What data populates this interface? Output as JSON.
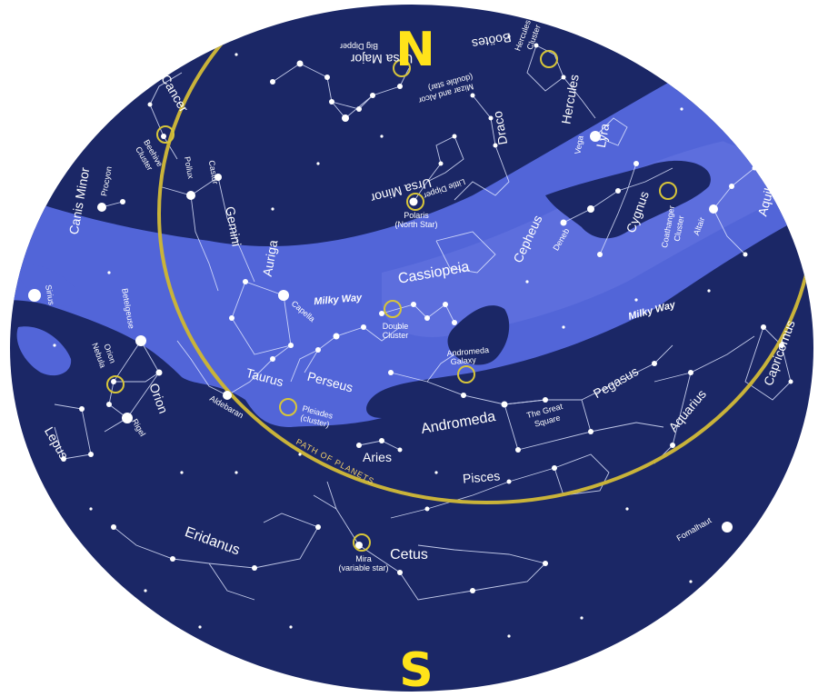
{
  "directions": {
    "north": "N",
    "south": "S"
  },
  "colors": {
    "sky": "#1b2766",
    "sky_dark": "#141d55",
    "milky_way": "#5265d8",
    "milky_way_light": "#6676e2",
    "ecliptic": "#c9b33a",
    "label": "#ffffff",
    "direction": "#ffe31a",
    "marker_ring": "#d7c53a"
  },
  "ecliptic_label": "PATH OF PLANETS",
  "milky_way_labels": [
    "Milky Way",
    "Milky Way"
  ],
  "constellations": [
    "Ursa Major",
    "Boötes",
    "Hercules",
    "Lyra",
    "Draco",
    "Ursa Minor",
    "Cancer",
    "Canis Minor",
    "Gemini",
    "Auriga",
    "Cassiopeia",
    "Cepheus",
    "Cygnus",
    "Aquila",
    "Perseus",
    "Taurus",
    "Orion",
    "Lepus",
    "Andromeda",
    "Pegasus",
    "Aquarius",
    "Capricornus",
    "Aries",
    "Pisces",
    "Eridanus",
    "Cetus"
  ],
  "stars": [
    "Vega",
    "Polaris",
    "(North Star)",
    "Procyon",
    "Pollux",
    "Castor",
    "Sirius",
    "Betelgeuse",
    "Capella",
    "Aldebaran",
    "Rigel",
    "Deneb",
    "Altair",
    "Fomalhaut"
  ],
  "objects": [
    "Big Dipper",
    "Mizar and Alcor",
    "(double star)",
    "Little Dipper",
    "Beehive",
    "Cluster",
    "Double",
    "Cluster",
    "Orion",
    "Nebula",
    "Andromeda",
    "Galaxy",
    "Pleiades",
    "(cluster)",
    "The Great",
    "Square",
    "Coathanger",
    "Cluster",
    "Mira",
    "(variable star)",
    "Hercules",
    "Cluster"
  ]
}
